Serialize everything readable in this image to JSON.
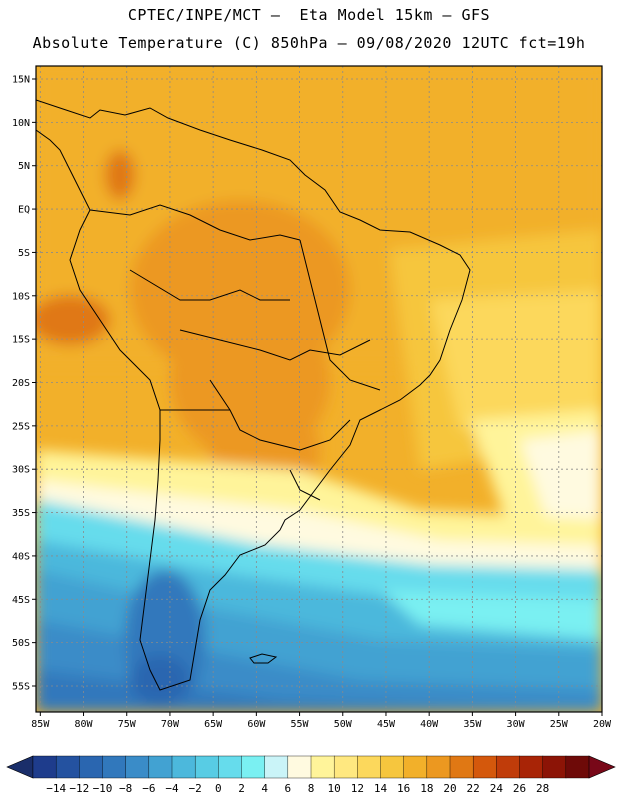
{
  "header": {
    "line1": "CPTEC/INPE/MCT –  Eta Model 15km – GFS",
    "line2": "Absolute Temperature (C) 850hPa – 09/08/2020 12UTC fct=19h"
  },
  "map": {
    "lat_labels": [
      "15N",
      "10N",
      "5N",
      "EQ",
      "5S",
      "10S",
      "15S",
      "20S",
      "25S",
      "30S",
      "35S",
      "40S",
      "45S",
      "50S",
      "55S"
    ],
    "lon_labels": [
      "85W",
      "80W",
      "75W",
      "70W",
      "65W",
      "60W",
      "55W",
      "50W",
      "45W",
      "40W",
      "35W",
      "30W",
      "25W",
      "20W"
    ],
    "lat_range": [
      -58,
      16.5
    ],
    "lon_range": [
      -85.5,
      -20
    ]
  },
  "colorbar": {
    "labels": [
      "-14",
      "-12",
      "-10",
      "-8",
      "-6",
      "-4",
      "-2",
      "0",
      "2",
      "4",
      "6",
      "8",
      "10",
      "12",
      "14",
      "16",
      "18",
      "20",
      "22",
      "24",
      "26",
      "28"
    ],
    "colors": [
      "#1e3c8c",
      "#2452a0",
      "#2a66b0",
      "#3178bc",
      "#3a8cc8",
      "#42a2d2",
      "#4cb8dc",
      "#58cce4",
      "#66dcec",
      "#7af0f2",
      "#caf4f8",
      "#fffae0",
      "#fff49a",
      "#ffe880",
      "#fcd85c",
      "#f6c63e",
      "#f2b02a",
      "#ec9820",
      "#e07814",
      "#d4580c",
      "#c03c0a",
      "#a82406",
      "#8c1406",
      "#6e0a08"
    ],
    "under_color": "#1a2e6a",
    "over_color": "#780818"
  }
}
